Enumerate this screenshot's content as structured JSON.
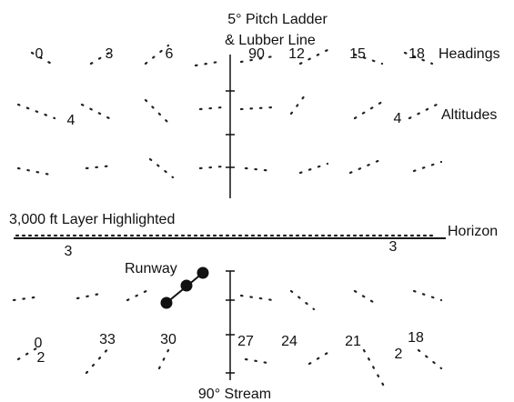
{
  "title": [
    "5° Pitch Ladder",
    "& Lubber Line"
  ],
  "upper_headings": [
    "0",
    "3",
    "6",
    "90",
    "12",
    "15",
    "18"
  ],
  "upper_altitudes": [
    "4",
    "4"
  ],
  "horizon_altitudes": [
    "3",
    "3"
  ],
  "lower_headings": [
    "0",
    "33",
    "30",
    "27",
    "24",
    "21",
    "18"
  ],
  "lower_altitudes": [
    "2",
    "2"
  ],
  "labels": {
    "headings": "Headings",
    "altitudes": "Altitudes",
    "layer": "3,000 ft Layer Highlighted",
    "horizon": "Horizon",
    "runway": "Runway",
    "stream": "90° Stream"
  }
}
